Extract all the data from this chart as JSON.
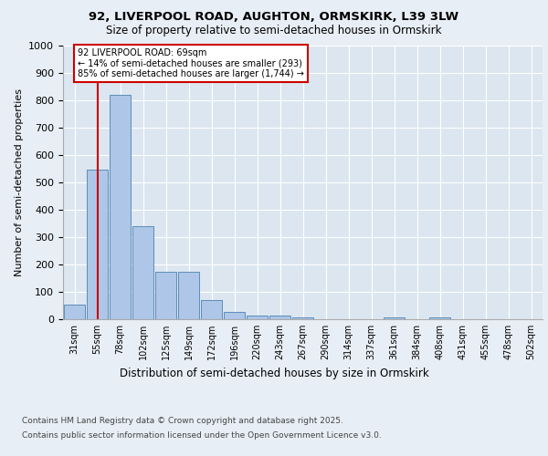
{
  "title_line1": "92, LIVERPOOL ROAD, AUGHTON, ORMSKIRK, L39 3LW",
  "title_line2": "Size of property relative to semi-detached houses in Ormskirk",
  "xlabel": "Distribution of semi-detached houses by size in Ormskirk",
  "ylabel": "Number of semi-detached properties",
  "categories": [
    "31sqm",
    "55sqm",
    "78sqm",
    "102sqm",
    "125sqm",
    "149sqm",
    "172sqm",
    "196sqm",
    "220sqm",
    "243sqm",
    "267sqm",
    "290sqm",
    "314sqm",
    "337sqm",
    "361sqm",
    "384sqm",
    "408sqm",
    "431sqm",
    "455sqm",
    "478sqm",
    "502sqm"
  ],
  "values": [
    55,
    548,
    820,
    340,
    172,
    172,
    70,
    28,
    13,
    13,
    8,
    0,
    0,
    0,
    7,
    0,
    7,
    0,
    0,
    0,
    0
  ],
  "bar_color": "#aec6e8",
  "bar_edge_color": "#5b8db8",
  "vline_x": 1,
  "vline_color": "#cc0000",
  "annotation_title": "92 LIVERPOOL ROAD: 69sqm",
  "annotation_line1": "← 14% of semi-detached houses are smaller (293)",
  "annotation_line2": "85% of semi-detached houses are larger (1,744) →",
  "annotation_box_color": "#cc0000",
  "background_color": "#e8eef5",
  "plot_bg_color": "#dce6f0",
  "grid_color": "#ffffff",
  "footer_line1": "Contains HM Land Registry data © Crown copyright and database right 2025.",
  "footer_line2": "Contains public sector information licensed under the Open Government Licence v3.0.",
  "ylim": [
    0,
    1000
  ],
  "yticks": [
    0,
    100,
    200,
    300,
    400,
    500,
    600,
    700,
    800,
    900,
    1000
  ]
}
